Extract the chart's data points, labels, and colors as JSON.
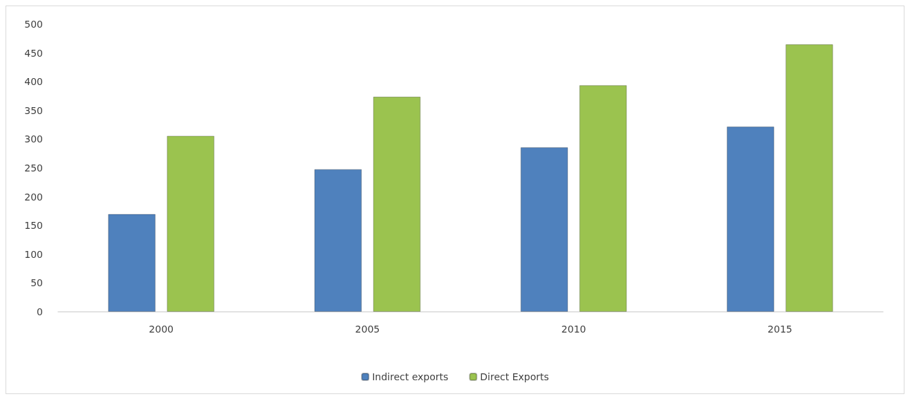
{
  "chart_data": {
    "type": "bar",
    "categories": [
      "2000",
      "2005",
      "2010",
      "2015"
    ],
    "series": [
      {
        "name": "Indirect exports",
        "color": "#4f81bd",
        "values": [
          170,
          248,
          286,
          322
        ]
      },
      {
        "name": "Direct Exports",
        "color": "#9bc34f",
        "values": [
          306,
          374,
          394,
          465
        ]
      }
    ],
    "ylim": [
      0,
      500
    ],
    "yticks": [
      0,
      50,
      100,
      150,
      200,
      250,
      300,
      350,
      400,
      450,
      500
    ],
    "grid": false,
    "legend": "bottom"
  }
}
